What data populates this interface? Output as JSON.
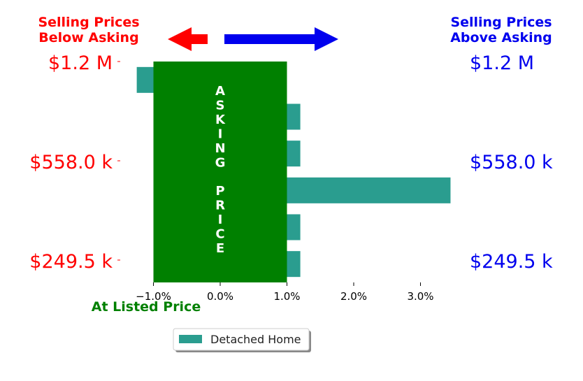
{
  "chart_data": {
    "type": "bar",
    "orientation": "horizontal",
    "xlim": [
      -1.0,
      3.0
    ],
    "x_ticks": [
      -1.0,
      0.0,
      1.0,
      2.0,
      3.0
    ],
    "x_tick_labels": [
      "−1.0%",
      "0.0%",
      "1.0%",
      "2.0%",
      "3.0%"
    ],
    "y_tick_labels_left": [
      "$1.2 M",
      "$558.0 k",
      "$249.5 k"
    ],
    "y_tick_labels_right": [
      "$1.2 M",
      "$558.0 k",
      "$249.5 k"
    ],
    "series": [
      {
        "name": "Detached Home",
        "values": [
          -1.25,
          1.2,
          1.2,
          3.45,
          1.2,
          1.2
        ]
      }
    ],
    "band": {
      "from": -1.0,
      "to": 1.0,
      "text": "ASKING PRICE"
    },
    "legend_position": "bottom-center",
    "grid": false
  },
  "annotations": {
    "below_asking_line1": "Selling Prices",
    "below_asking_line2": "Below Asking",
    "above_asking_line1": "Selling Prices",
    "above_asking_line2": "Above Asking",
    "at_listed": "At Listed Price"
  },
  "colors": {
    "bar": "#2a9d8f",
    "band": "#008000",
    "below": "#ff0000",
    "above": "#0000ee",
    "at_listed": "#008000"
  }
}
